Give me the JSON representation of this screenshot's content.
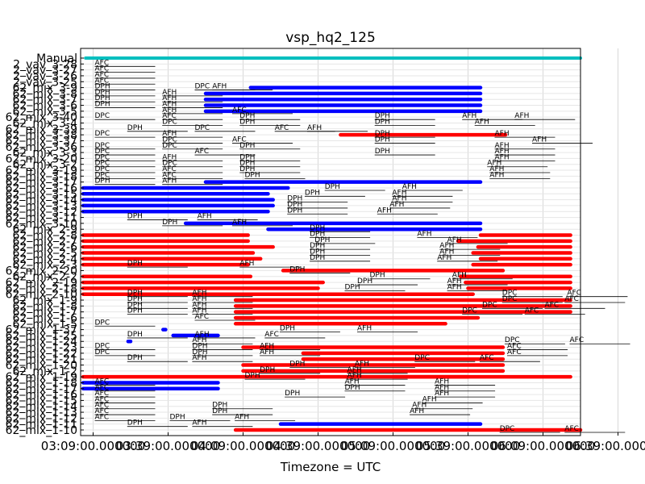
{
  "chart_data": {
    "type": "gantt",
    "title": "vsp_hq2_125",
    "xlabel": "Timezone = UTC",
    "xticks": [
      "03:09:00.000000",
      "03:39:00.000000",
      "04:09:00.000000",
      "04:39:00.000000",
      "05:09:00.000000",
      "05:39:00.000000",
      "06:09:00.000000",
      "06:39:00.000000"
    ],
    "xlim_minutes": [
      -5,
      195
    ],
    "grid": true,
    "colors": {
      "manual": "#00bfbf",
      "blue": "#0000ff",
      "red": "#ff0000",
      "black": "#000000"
    },
    "rows": [
      "Manual",
      "2_vav_3-28",
      "2_vav_3-27",
      "2_vav_3-26",
      "2_vav_3-25",
      "62_mix_3-9",
      "62_mix_3-8",
      "62_mix_3-7",
      "62_mix_3-6",
      "62_mix_3-5",
      "62_mix_3-40",
      "62_mix_3-4",
      "62_mix_3-39",
      "62_mix_3-38",
      "62_mix_3-37",
      "62_mix_3-36",
      "62_mix_3-3",
      "62_mix_3-20",
      "62_mix_3-2",
      "62_mix_3-19",
      "62_mix_3-18",
      "62_mix_3-17",
      "62_mix_3-16",
      "62_mix_3-15",
      "62_mix_3-14",
      "62_mix_3-13",
      "62_mix_3-12",
      "62_mix_3-11",
      "62_mix_3-10",
      "62_mix_2-9",
      "62_mix_2-8",
      "62_mix_2-7",
      "62_mix_2-6",
      "62_mix_2-5",
      "62_mix_2-4",
      "62_mix_2-3",
      "62_mix_2-20",
      "62_mix_2-2",
      "62_mix_2-19",
      "62_mix_2-18",
      "62_mix_2-10",
      "62_mix_1-9",
      "62_mix_1-8",
      "62_mix_1-7",
      "62_mix_1-6",
      "62_mix_1-5",
      "62_mix_1-37",
      "62_mix_1-25",
      "62_mix_1-24",
      "62_mix_1-23",
      "62_mix_1-22",
      "62_mix_1-21",
      "62_mix_1-20",
      "62_mix_1-2",
      "62_mix_1-19",
      "62_mix_1-18",
      "62_mix_1-17",
      "62_mix_1-16",
      "62_mix_1-15",
      "62_mix_1-14",
      "62_mix_1-13",
      "62_mix_1-12",
      "62_mix_1-11",
      "62_mix_1-10"
    ],
    "bars": [
      {
        "row": 0,
        "start": -3,
        "end": 195,
        "color": "manual"
      },
      {
        "row": 5,
        "start": 63,
        "end": 155,
        "color": "blue"
      },
      {
        "row": 6,
        "start": 45,
        "end": 155,
        "color": "blue"
      },
      {
        "row": 7,
        "start": 45,
        "end": 155,
        "color": "blue"
      },
      {
        "row": 8,
        "start": 45,
        "end": 155,
        "color": "blue"
      },
      {
        "row": 9,
        "start": 45,
        "end": 155,
        "color": "blue"
      },
      {
        "row": 13,
        "start": 99,
        "end": 165,
        "color": "red"
      },
      {
        "row": 21,
        "start": 45,
        "end": 155,
        "color": "blue"
      },
      {
        "row": 22,
        "start": -4,
        "end": 78,
        "color": "blue"
      },
      {
        "row": 23,
        "start": -4,
        "end": 70,
        "color": "blue"
      },
      {
        "row": 24,
        "start": -4,
        "end": 72,
        "color": "blue"
      },
      {
        "row": 25,
        "start": -4,
        "end": 72,
        "color": "blue"
      },
      {
        "row": 26,
        "start": -4,
        "end": 70,
        "color": "blue"
      },
      {
        "row": 28,
        "start": 37,
        "end": 155,
        "color": "blue"
      },
      {
        "row": 29,
        "start": 70,
        "end": 155,
        "color": "blue"
      },
      {
        "row": 30,
        "start": -4,
        "end": 62,
        "color": "red"
      },
      {
        "row": 30,
        "start": 155,
        "end": 191,
        "color": "red"
      },
      {
        "row": 31,
        "start": -4,
        "end": 62,
        "color": "red"
      },
      {
        "row": 31,
        "start": 146,
        "end": 191,
        "color": "red"
      },
      {
        "row": 32,
        "start": -4,
        "end": 72,
        "color": "red"
      },
      {
        "row": 32,
        "start": 154,
        "end": 191,
        "color": "red"
      },
      {
        "row": 33,
        "start": -4,
        "end": 64,
        "color": "red"
      },
      {
        "row": 33,
        "start": 152,
        "end": 191,
        "color": "red"
      },
      {
        "row": 34,
        "start": -4,
        "end": 67,
        "color": "red"
      },
      {
        "row": 34,
        "start": 155,
        "end": 191,
        "color": "red"
      },
      {
        "row": 35,
        "start": -4,
        "end": 62,
        "color": "red"
      },
      {
        "row": 35,
        "start": 152,
        "end": 191,
        "color": "red"
      },
      {
        "row": 36,
        "start": 76,
        "end": 164,
        "color": "red"
      },
      {
        "row": 37,
        "start": -4,
        "end": 63,
        "color": "red"
      },
      {
        "row": 37,
        "start": 147,
        "end": 191,
        "color": "red"
      },
      {
        "row": 38,
        "start": -4,
        "end": 92,
        "color": "red"
      },
      {
        "row": 38,
        "start": 149,
        "end": 191,
        "color": "red"
      },
      {
        "row": 39,
        "start": -4,
        "end": 90,
        "color": "red"
      },
      {
        "row": 39,
        "start": 150,
        "end": 191,
        "color": "red"
      },
      {
        "row": 40,
        "start": -4,
        "end": 152,
        "color": "red"
      },
      {
        "row": 41,
        "start": 57,
        "end": 191,
        "color": "red"
      },
      {
        "row": 42,
        "start": 57,
        "end": 191,
        "color": "red"
      },
      {
        "row": 43,
        "start": 57,
        "end": 191,
        "color": "red"
      },
      {
        "row": 44,
        "start": 57,
        "end": 154,
        "color": "red"
      },
      {
        "row": 45,
        "start": 57,
        "end": 141,
        "color": "red"
      },
      {
        "row": 46,
        "start": 28,
        "end": 29,
        "color": "blue"
      },
      {
        "row": 47,
        "start": 32,
        "end": 50,
        "color": "blue"
      },
      {
        "row": 48,
        "start": 14,
        "end": 15,
        "color": "blue"
      },
      {
        "row": 49,
        "start": 60,
        "end": 164,
        "color": "red"
      },
      {
        "row": 50,
        "start": 84,
        "end": 164,
        "color": "red"
      },
      {
        "row": 51,
        "start": 84,
        "end": 164,
        "color": "red"
      },
      {
        "row": 52,
        "start": 60,
        "end": 164,
        "color": "red"
      },
      {
        "row": 53,
        "start": 60,
        "end": 164,
        "color": "red"
      },
      {
        "row": 54,
        "start": -4,
        "end": 150,
        "color": "red"
      },
      {
        "row": 54,
        "start": 120,
        "end": 191,
        "color": "red"
      },
      {
        "row": 55,
        "start": -4,
        "end": 50,
        "color": "blue"
      },
      {
        "row": 56,
        "start": -4,
        "end": 50,
        "color": "blue"
      },
      {
        "row": 62,
        "start": 75,
        "end": 155,
        "color": "blue"
      },
      {
        "row": 63,
        "start": 57,
        "end": 195,
        "color": "red"
      }
    ],
    "annotations": [
      {
        "row": 1,
        "x": 0,
        "label": "AFC"
      },
      {
        "row": 2,
        "x": 0,
        "label": "AFC"
      },
      {
        "row": 3,
        "x": 0,
        "label": "AFC"
      },
      {
        "row": 4,
        "x": 0,
        "label": "AFC"
      },
      {
        "row": 5,
        "x": 0,
        "label": "DPH"
      },
      {
        "row": 5,
        "x": 40,
        "label": "DPC"
      },
      {
        "row": 5,
        "x": 47,
        "label": "AFH"
      },
      {
        "row": 6,
        "x": 0,
        "label": "DPH"
      },
      {
        "row": 6,
        "x": 27,
        "label": "AFH"
      },
      {
        "row": 7,
        "x": 0,
        "label": "DPH"
      },
      {
        "row": 7,
        "x": 27,
        "label": "AFH"
      },
      {
        "row": 8,
        "x": 0,
        "label": "DPH"
      },
      {
        "row": 8,
        "x": 27,
        "label": "AFH"
      },
      {
        "row": 9,
        "x": 27,
        "label": "AFH"
      },
      {
        "row": 9,
        "x": 55,
        "label": "AFC"
      },
      {
        "row": 10,
        "x": 0,
        "label": "DPC"
      },
      {
        "row": 10,
        "x": 27,
        "label": "AFC"
      },
      {
        "row": 10,
        "x": 58,
        "label": "DPH"
      },
      {
        "row": 10,
        "x": 112,
        "label": "DPH"
      },
      {
        "row": 10,
        "x": 147,
        "label": "AFH"
      },
      {
        "row": 10,
        "x": 168,
        "label": "AFH"
      },
      {
        "row": 11,
        "x": 27,
        "label": "DPC"
      },
      {
        "row": 11,
        "x": 58,
        "label": "DPH"
      },
      {
        "row": 11,
        "x": 112,
        "label": "DPH"
      },
      {
        "row": 11,
        "x": 152,
        "label": "AFH"
      },
      {
        "row": 12,
        "x": 13,
        "label": "DPH"
      },
      {
        "row": 12,
        "x": 40,
        "label": "DPC"
      },
      {
        "row": 12,
        "x": 72,
        "label": "AFC"
      },
      {
        "row": 12,
        "x": 85,
        "label": "AFH"
      },
      {
        "row": 13,
        "x": 0,
        "label": "DPC"
      },
      {
        "row": 13,
        "x": 27,
        "label": "AFH"
      },
      {
        "row": 13,
        "x": 112,
        "label": "DPH"
      },
      {
        "row": 13,
        "x": 160,
        "label": "AFH"
      },
      {
        "row": 14,
        "x": 27,
        "label": "DPC"
      },
      {
        "row": 14,
        "x": 55,
        "label": "AFC"
      },
      {
        "row": 14,
        "x": 112,
        "label": "DPH"
      },
      {
        "row": 14,
        "x": 175,
        "label": "AFH"
      },
      {
        "row": 15,
        "x": 0,
        "label": "DPC"
      },
      {
        "row": 15,
        "x": 27,
        "label": "DPC"
      },
      {
        "row": 15,
        "x": 58,
        "label": "DPH"
      },
      {
        "row": 15,
        "x": 160,
        "label": "AFH"
      },
      {
        "row": 16,
        "x": 0,
        "label": "DPC"
      },
      {
        "row": 16,
        "x": 40,
        "label": "AFC"
      },
      {
        "row": 16,
        "x": 112,
        "label": "DPH"
      },
      {
        "row": 16,
        "x": 160,
        "label": "AFH"
      },
      {
        "row": 17,
        "x": 0,
        "label": "DPC"
      },
      {
        "row": 17,
        "x": 27,
        "label": "AFH"
      },
      {
        "row": 17,
        "x": 58,
        "label": "DPH"
      },
      {
        "row": 17,
        "x": 160,
        "label": "AFH"
      },
      {
        "row": 18,
        "x": 0,
        "label": "DPC"
      },
      {
        "row": 18,
        "x": 27,
        "label": "DPC"
      },
      {
        "row": 18,
        "x": 58,
        "label": "DPH"
      },
      {
        "row": 18,
        "x": 157,
        "label": "AFH"
      },
      {
        "row": 19,
        "x": 0,
        "label": "DPC"
      },
      {
        "row": 19,
        "x": 27,
        "label": "AFC"
      },
      {
        "row": 19,
        "x": 58,
        "label": "DPH"
      },
      {
        "row": 19,
        "x": 158,
        "label": "AFH"
      },
      {
        "row": 20,
        "x": 0,
        "label": "DPC"
      },
      {
        "row": 20,
        "x": 27,
        "label": "AFC"
      },
      {
        "row": 20,
        "x": 60,
        "label": "DPH"
      },
      {
        "row": 20,
        "x": 158,
        "label": "AFH"
      },
      {
        "row": 21,
        "x": 0,
        "label": "DPH"
      },
      {
        "row": 21,
        "x": 27,
        "label": "AFH"
      },
      {
        "row": 22,
        "x": 92,
        "label": "DPH"
      },
      {
        "row": 22,
        "x": 123,
        "label": "AFH"
      },
      {
        "row": 23,
        "x": 84,
        "label": "DPH"
      },
      {
        "row": 23,
        "x": 119,
        "label": "AFH"
      },
      {
        "row": 24,
        "x": 77,
        "label": "DPH"
      },
      {
        "row": 24,
        "x": 119,
        "label": "AFH"
      },
      {
        "row": 25,
        "x": 77,
        "label": "DPH"
      },
      {
        "row": 25,
        "x": 118,
        "label": "AFH"
      },
      {
        "row": 26,
        "x": 77,
        "label": "DPH"
      },
      {
        "row": 26,
        "x": 113,
        "label": "AFH"
      },
      {
        "row": 27,
        "x": 13,
        "label": "DPH"
      },
      {
        "row": 27,
        "x": 41,
        "label": "AFH"
      },
      {
        "row": 28,
        "x": 27,
        "label": "DPH"
      },
      {
        "row": 28,
        "x": 55,
        "label": "AFH"
      },
      {
        "row": 29,
        "x": 86,
        "label": "DPH"
      },
      {
        "row": 30,
        "x": 86,
        "label": "DPH"
      },
      {
        "row": 30,
        "x": 129,
        "label": "AFH"
      },
      {
        "row": 31,
        "x": 88,
        "label": "DPH"
      },
      {
        "row": 31,
        "x": 141,
        "label": "AFH"
      },
      {
        "row": 32,
        "x": 86,
        "label": "DPH"
      },
      {
        "row": 32,
        "x": 138,
        "label": "AFH"
      },
      {
        "row": 33,
        "x": 86,
        "label": "DPH"
      },
      {
        "row": 33,
        "x": 138,
        "label": "AFH"
      },
      {
        "row": 34,
        "x": 86,
        "label": "DPH"
      },
      {
        "row": 34,
        "x": 137,
        "label": "AFH"
      },
      {
        "row": 35,
        "x": 13,
        "label": "DPH"
      },
      {
        "row": 35,
        "x": 58,
        "label": "AFH"
      },
      {
        "row": 36,
        "x": 78,
        "label": "DPH"
      },
      {
        "row": 37,
        "x": 110,
        "label": "DPH"
      },
      {
        "row": 37,
        "x": 143,
        "label": "AFH"
      },
      {
        "row": 38,
        "x": 105,
        "label": "DPH"
      },
      {
        "row": 38,
        "x": 141,
        "label": "AFH"
      },
      {
        "row": 39,
        "x": 100,
        "label": "DPH"
      },
      {
        "row": 39,
        "x": 141,
        "label": "AFH"
      },
      {
        "row": 40,
        "x": 13,
        "label": "DPH"
      },
      {
        "row": 40,
        "x": 39,
        "label": "AFH"
      },
      {
        "row": 40,
        "x": 163,
        "label": "DPC"
      },
      {
        "row": 40,
        "x": 189,
        "label": "AFC"
      },
      {
        "row": 41,
        "x": 13,
        "label": "DPH"
      },
      {
        "row": 41,
        "x": 39,
        "label": "AFH"
      },
      {
        "row": 41,
        "x": 163,
        "label": "DPC"
      },
      {
        "row": 41,
        "x": 188,
        "label": "AFC"
      },
      {
        "row": 42,
        "x": 13,
        "label": "DPH"
      },
      {
        "row": 42,
        "x": 39,
        "label": "AFH"
      },
      {
        "row": 42,
        "x": 155,
        "label": "DPC"
      },
      {
        "row": 42,
        "x": 180,
        "label": "AFC"
      },
      {
        "row": 43,
        "x": 13,
        "label": "DPH"
      },
      {
        "row": 43,
        "x": 39,
        "label": "AFH"
      },
      {
        "row": 43,
        "x": 147,
        "label": "DPC"
      },
      {
        "row": 43,
        "x": 172,
        "label": "AFC"
      },
      {
        "row": 44,
        "x": 40,
        "label": "AFC"
      },
      {
        "row": 45,
        "x": 0,
        "label": "DPC"
      },
      {
        "row": 46,
        "x": 74,
        "label": "DPH"
      },
      {
        "row": 46,
        "x": 105,
        "label": "AFH"
      },
      {
        "row": 47,
        "x": 13,
        "label": "DPH"
      },
      {
        "row": 47,
        "x": 40,
        "label": "AFH"
      },
      {
        "row": 47,
        "x": 68,
        "label": "AFC"
      },
      {
        "row": 48,
        "x": 39,
        "label": "AFH"
      },
      {
        "row": 48,
        "x": 164,
        "label": "DPC"
      },
      {
        "row": 48,
        "x": 190,
        "label": "AFC"
      },
      {
        "row": 49,
        "x": 0,
        "label": "DPC"
      },
      {
        "row": 49,
        "x": 39,
        "label": "DPH"
      },
      {
        "row": 49,
        "x": 66,
        "label": "AFH"
      },
      {
        "row": 49,
        "x": 165,
        "label": "AFC"
      },
      {
        "row": 50,
        "x": 0,
        "label": "DPC"
      },
      {
        "row": 50,
        "x": 39,
        "label": "DPH"
      },
      {
        "row": 50,
        "x": 66,
        "label": "AFH"
      },
      {
        "row": 50,
        "x": 165,
        "label": "AFC"
      },
      {
        "row": 51,
        "x": 13,
        "label": "DPH"
      },
      {
        "row": 51,
        "x": 39,
        "label": "AFH"
      },
      {
        "row": 51,
        "x": 128,
        "label": "DPC"
      },
      {
        "row": 51,
        "x": 154,
        "label": "AFC"
      },
      {
        "row": 52,
        "x": 78,
        "label": "DPH"
      },
      {
        "row": 52,
        "x": 104,
        "label": "AFH"
      },
      {
        "row": 53,
        "x": 66,
        "label": "DPH"
      },
      {
        "row": 53,
        "x": 101,
        "label": "AFH"
      },
      {
        "row": 54,
        "x": 60,
        "label": "DPH"
      },
      {
        "row": 54,
        "x": 101,
        "label": "AFH"
      },
      {
        "row": 55,
        "x": 0,
        "label": "AFC"
      },
      {
        "row": 55,
        "x": 100,
        "label": "AFH"
      },
      {
        "row": 55,
        "x": 136,
        "label": "AFH"
      },
      {
        "row": 56,
        "x": 0,
        "label": "AFC"
      },
      {
        "row": 56,
        "x": 100,
        "label": "DPH"
      },
      {
        "row": 56,
        "x": 136,
        "label": "AFH"
      },
      {
        "row": 57,
        "x": 0,
        "label": "AFC"
      },
      {
        "row": 57,
        "x": 76,
        "label": "DPH"
      },
      {
        "row": 57,
        "x": 136,
        "label": "AFH"
      },
      {
        "row": 58,
        "x": 0,
        "label": "AFC"
      },
      {
        "row": 58,
        "x": 131,
        "label": "AFH"
      },
      {
        "row": 59,
        "x": 0,
        "label": "AFC"
      },
      {
        "row": 59,
        "x": 47,
        "label": "DPH"
      },
      {
        "row": 59,
        "x": 127,
        "label": "AFH"
      },
      {
        "row": 60,
        "x": 0,
        "label": "AFC"
      },
      {
        "row": 60,
        "x": 47,
        "label": "DPH"
      },
      {
        "row": 60,
        "x": 126,
        "label": "AFH"
      },
      {
        "row": 61,
        "x": 0,
        "label": "AFC"
      },
      {
        "row": 61,
        "x": 30,
        "label": "DPH"
      },
      {
        "row": 61,
        "x": 56,
        "label": "AFH"
      },
      {
        "row": 62,
        "x": 13,
        "label": "DPH"
      },
      {
        "row": 62,
        "x": 39,
        "label": "AFH"
      },
      {
        "row": 63,
        "x": 162,
        "label": "DPC"
      },
      {
        "row": 63,
        "x": 188,
        "label": "AFC"
      }
    ]
  }
}
